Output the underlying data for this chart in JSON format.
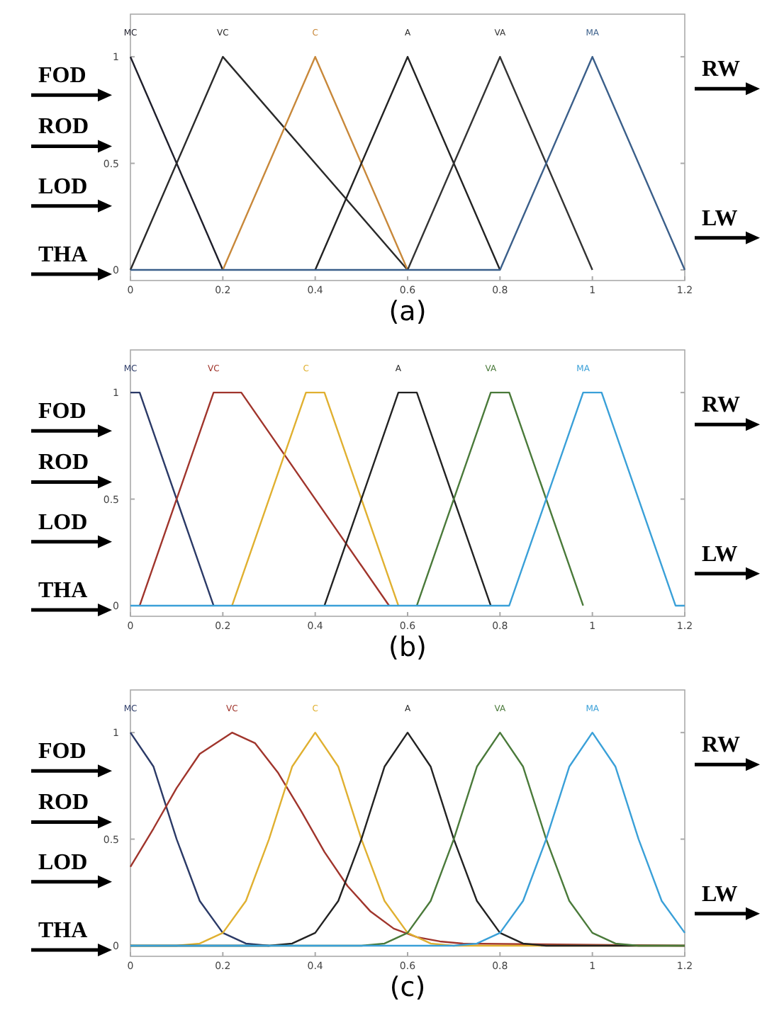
{
  "chart_data": [
    {
      "type": "line",
      "title": "(a)",
      "annotations": [
        "FOD",
        "ROD",
        "LOD",
        "THA",
        "RW",
        "LW"
      ],
      "xlim": [
        0,
        1.2
      ],
      "ylim": [
        -0.05,
        1.2
      ],
      "xticks": [
        0,
        0.2,
        0.4,
        0.6,
        0.8,
        1,
        1.2
      ],
      "yticks": [
        0,
        0.5,
        1
      ],
      "series": [
        {
          "name": "MC",
          "color": "#1e1e2a",
          "x": [
            0,
            0.2
          ],
          "values": [
            1,
            0
          ]
        },
        {
          "name": "VC",
          "color": "#2a2a2a",
          "x": [
            0,
            0.2,
            0.6
          ],
          "values": [
            0,
            1,
            0
          ]
        },
        {
          "name": "C",
          "color": "#c8883a",
          "x": [
            0.2,
            0.4,
            0.6
          ],
          "values": [
            0,
            1,
            0
          ]
        },
        {
          "name": "A",
          "color": "#222222",
          "x": [
            0.4,
            0.6,
            0.8
          ],
          "values": [
            0,
            1,
            0
          ]
        },
        {
          "name": "VA",
          "color": "#333333",
          "x": [
            0.6,
            0.8,
            1
          ],
          "values": [
            0,
            1,
            0
          ]
        },
        {
          "name": "MA",
          "color": "#3b5f8a",
          "x": [
            0,
            0.8,
            1,
            1.2
          ],
          "values": [
            0,
            0,
            1,
            0
          ]
        }
      ]
    },
    {
      "type": "line",
      "title": "(b)",
      "annotations": [
        "FOD",
        "ROD",
        "LOD",
        "THA",
        "RW",
        "LW"
      ],
      "xlim": [
        0,
        1.2
      ],
      "ylim": [
        -0.05,
        1.2
      ],
      "xticks": [
        0,
        0.2,
        0.4,
        0.6,
        0.8,
        1,
        1.2
      ],
      "yticks": [
        0,
        0.5,
        1
      ],
      "series": [
        {
          "name": "MC",
          "color": "#2b3a67",
          "x": [
            0,
            0.02,
            0.18
          ],
          "values": [
            1,
            1,
            0
          ]
        },
        {
          "name": "VC",
          "color": "#a0352c",
          "x": [
            0.02,
            0.18,
            0.24,
            0.56
          ],
          "values": [
            0,
            1,
            1,
            0
          ]
        },
        {
          "name": "C",
          "color": "#e0b030",
          "x": [
            0.22,
            0.38,
            0.42,
            0.58
          ],
          "values": [
            0,
            1,
            1,
            0
          ]
        },
        {
          "name": "A",
          "color": "#222222",
          "x": [
            0.42,
            0.58,
            0.62,
            0.78
          ],
          "values": [
            0,
            1,
            1,
            0
          ]
        },
        {
          "name": "VA",
          "color": "#4a7a3a",
          "x": [
            0.62,
            0.78,
            0.82,
            0.98
          ],
          "values": [
            0,
            1,
            1,
            0
          ]
        },
        {
          "name": "MA",
          "color": "#3aa0d8",
          "x": [
            0,
            0.82,
            0.98,
            1.02,
            1.18,
            1.2
          ],
          "values": [
            0,
            0,
            1,
            1,
            0,
            0
          ]
        }
      ]
    },
    {
      "type": "line",
      "title": "(c)",
      "annotations": [
        "FOD",
        "ROD",
        "LOD",
        "THA",
        "RW",
        "LW"
      ],
      "xlim": [
        0,
        1.2
      ],
      "ylim": [
        -0.05,
        1.2
      ],
      "xticks": [
        0,
        0.2,
        0.4,
        0.6,
        0.8,
        1,
        1.2
      ],
      "yticks": [
        0,
        0.5,
        1
      ],
      "series": [
        {
          "name": "MC",
          "color": "#2b3a67",
          "x": [
            0,
            0.05,
            0.1,
            0.15,
            0.2,
            0.25,
            0.3
          ],
          "values": [
            1,
            0.84,
            0.5,
            0.21,
            0.06,
            0.01,
            0
          ]
        },
        {
          "name": "VC",
          "color": "#a0352c",
          "x": [
            0,
            0.05,
            0.1,
            0.15,
            0.22,
            0.27,
            0.32,
            0.37,
            0.42,
            0.47,
            0.52,
            0.57,
            0.62,
            0.67,
            0.72,
            1.2
          ],
          "values": [
            0.37,
            0.55,
            0.74,
            0.9,
            1,
            0.95,
            0.81,
            0.63,
            0.44,
            0.28,
            0.16,
            0.08,
            0.04,
            0.02,
            0.01,
            0
          ]
        },
        {
          "name": "C",
          "color": "#e0b030",
          "x": [
            0,
            0.1,
            0.15,
            0.2,
            0.25,
            0.3,
            0.35,
            0.4,
            0.45,
            0.5,
            0.55,
            0.6,
            0.65,
            0.7,
            1.2
          ],
          "values": [
            0,
            0,
            0.01,
            0.06,
            0.21,
            0.5,
            0.84,
            1,
            0.84,
            0.5,
            0.21,
            0.06,
            0.01,
            0,
            0
          ]
        },
        {
          "name": "A",
          "color": "#222222",
          "x": [
            0,
            0.3,
            0.35,
            0.4,
            0.45,
            0.5,
            0.55,
            0.6,
            0.65,
            0.7,
            0.75,
            0.8,
            0.85,
            0.9,
            1.2
          ],
          "values": [
            0,
            0,
            0.01,
            0.06,
            0.21,
            0.5,
            0.84,
            1,
            0.84,
            0.5,
            0.21,
            0.06,
            0.01,
            0,
            0
          ]
        },
        {
          "name": "VA",
          "color": "#4a7a3a",
          "x": [
            0,
            0.5,
            0.55,
            0.6,
            0.65,
            0.7,
            0.75,
            0.8,
            0.85,
            0.9,
            0.95,
            1,
            1.05,
            1.1,
            1.2
          ],
          "values": [
            0,
            0,
            0.01,
            0.06,
            0.21,
            0.5,
            0.84,
            1,
            0.84,
            0.5,
            0.21,
            0.06,
            0.01,
            0,
            0
          ]
        },
        {
          "name": "MA",
          "color": "#3aa0d8",
          "x": [
            0,
            0.7,
            0.75,
            0.8,
            0.85,
            0.9,
            0.95,
            1,
            1.05,
            1.1,
            1.15,
            1.2
          ],
          "values": [
            0,
            0,
            0.01,
            0.06,
            0.21,
            0.5,
            0.84,
            1,
            0.84,
            0.5,
            0.21,
            0.06
          ]
        }
      ]
    }
  ]
}
